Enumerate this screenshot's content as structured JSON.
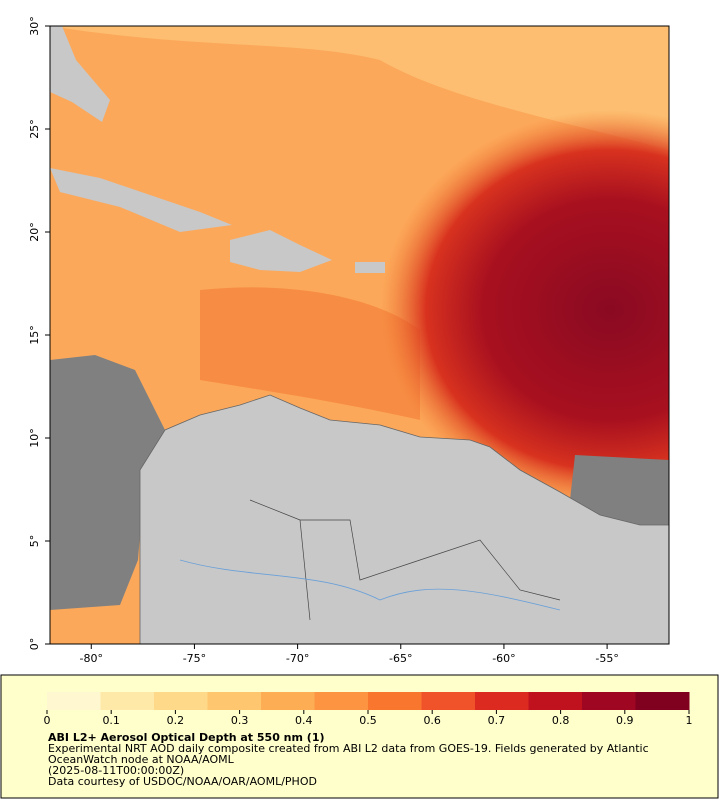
{
  "map": {
    "xlim": [
      -82,
      -52
    ],
    "ylim": [
      0,
      30
    ],
    "xticks": [
      {
        "value": -80,
        "label": "-80°"
      },
      {
        "value": -75,
        "label": "-75°"
      },
      {
        "value": -70,
        "label": "-70°"
      },
      {
        "value": -65,
        "label": "-65°"
      },
      {
        "value": -60,
        "label": "-60°"
      },
      {
        "value": -55,
        "label": "-55°"
      }
    ],
    "yticks": [
      {
        "value": 0,
        "label": "0°"
      },
      {
        "value": 5,
        "label": "5°"
      },
      {
        "value": 10,
        "label": "10°"
      },
      {
        "value": 15,
        "label": "15°"
      },
      {
        "value": 20,
        "label": "20°"
      },
      {
        "value": 25,
        "label": "25°"
      },
      {
        "value": 30,
        "label": "30°"
      }
    ]
  },
  "colorbar": {
    "lim": [
      0,
      1
    ],
    "ticks": [
      0,
      0.1,
      0.2,
      0.3,
      0.4,
      0.5,
      0.6,
      0.7,
      0.8,
      0.9,
      1
    ],
    "colors": [
      "#fff7d0",
      "#ffe9a8",
      "#fed98a",
      "#fec66e",
      "#fdae55",
      "#fc9442",
      "#f9762f",
      "#f0522a",
      "#dc2a21",
      "#c0111f",
      "#9e0622",
      "#800020"
    ]
  },
  "caption": {
    "title": "ABI L2+ Aerosol Optical Depth at 550 nm (1)",
    "lines": [
      "Experimental NRT AOD daily composite created from ABI L2 data from GOES-19. Fields generated by Atlantic",
      "OceanWatch node at NOAA/AOML",
      "(2025-08-11T00:00:00Z)",
      "Data courtesy of USDOC/NOAA/OAR/AOML/PHOD"
    ]
  }
}
